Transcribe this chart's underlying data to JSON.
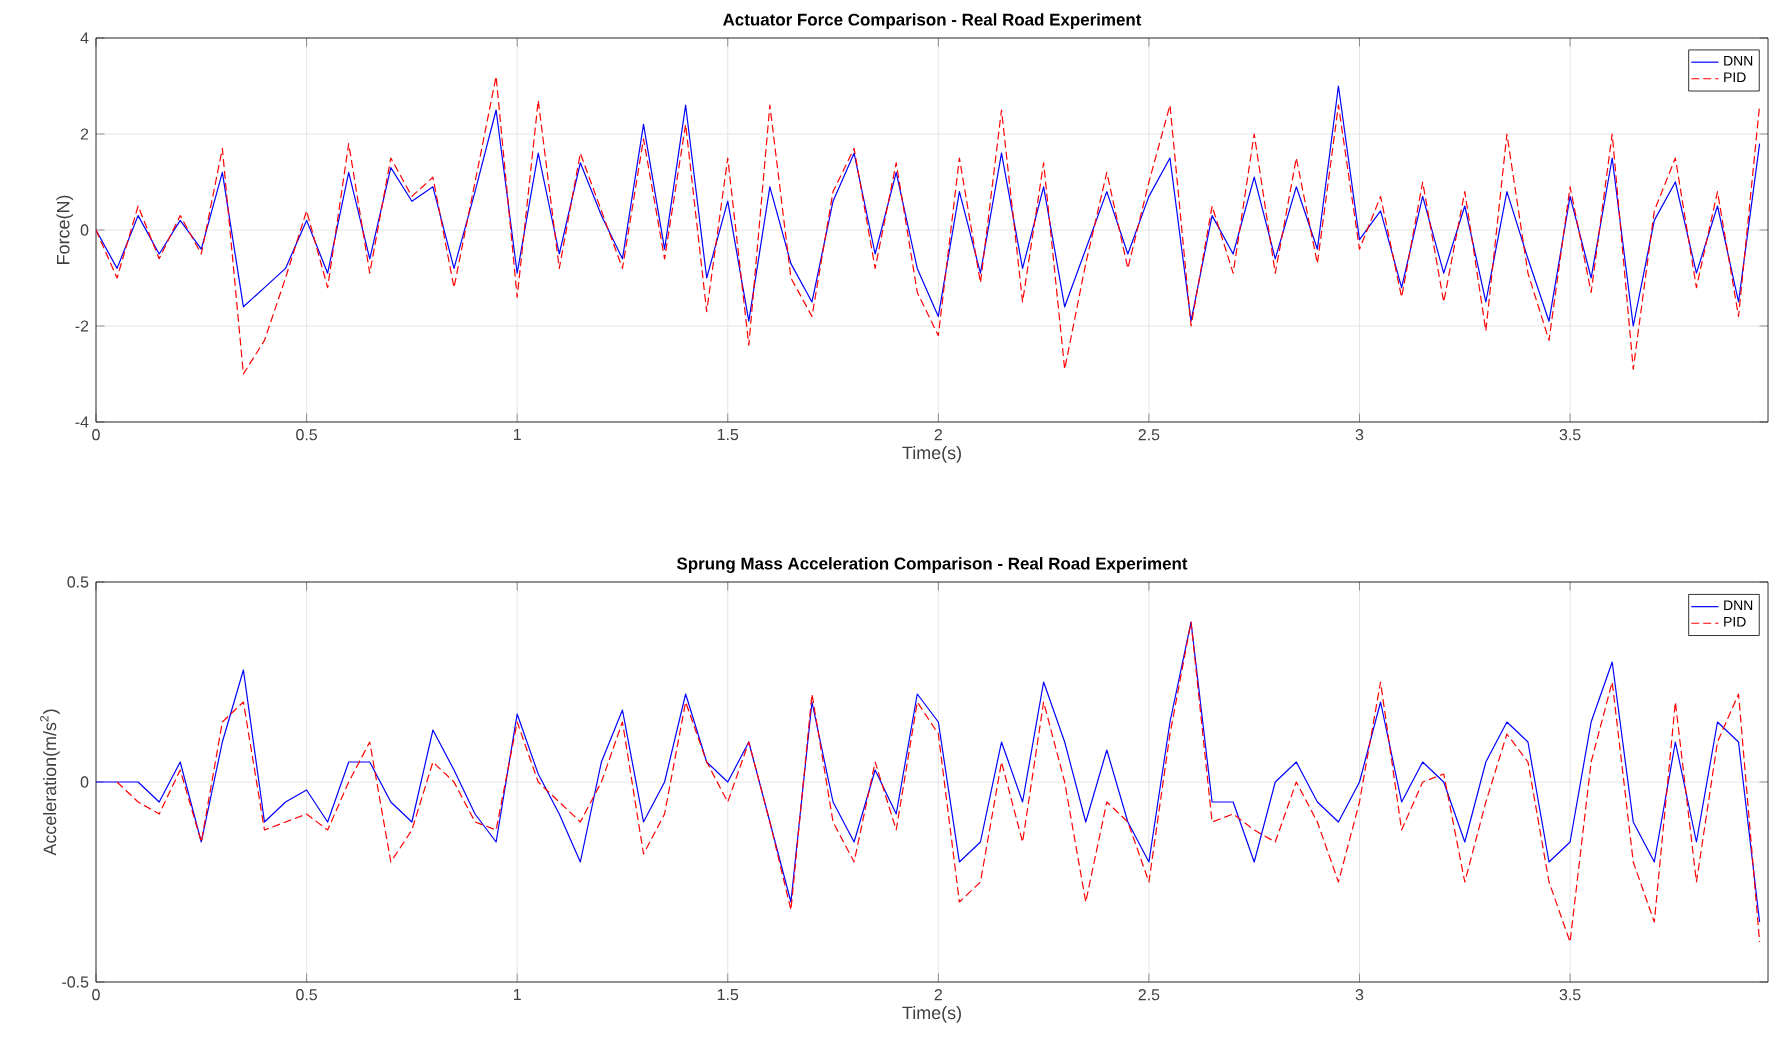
{
  "chart_data": [
    {
      "type": "line",
      "title": "Actuator Force Comparison - Real Road Experiment",
      "xlabel": "Time(s)",
      "ylabel": "Force(N)",
      "xlim": [
        0,
        3.97
      ],
      "ylim": [
        -4,
        4
      ],
      "xticks": [
        0,
        0.5,
        1,
        1.5,
        2,
        2.5,
        3,
        3.5
      ],
      "yticks": [
        -4,
        -2,
        0,
        2,
        4
      ],
      "grid": true,
      "legend": "top right",
      "x": [
        0,
        0.05,
        0.1,
        0.15,
        0.2,
        0.25,
        0.3,
        0.35,
        0.4,
        0.45,
        0.5,
        0.55,
        0.6,
        0.65,
        0.7,
        0.75,
        0.8,
        0.85,
        0.9,
        0.95,
        1.0,
        1.05,
        1.1,
        1.15,
        1.2,
        1.25,
        1.3,
        1.35,
        1.4,
        1.45,
        1.5,
        1.55,
        1.6,
        1.65,
        1.7,
        1.75,
        1.8,
        1.85,
        1.9,
        1.95,
        2.0,
        2.05,
        2.1,
        2.15,
        2.2,
        2.25,
        2.3,
        2.35,
        2.4,
        2.45,
        2.5,
        2.55,
        2.6,
        2.65,
        2.7,
        2.75,
        2.8,
        2.85,
        2.9,
        2.95,
        3.0,
        3.05,
        3.1,
        3.15,
        3.2,
        3.25,
        3.3,
        3.35,
        3.4,
        3.45,
        3.5,
        3.55,
        3.6,
        3.65,
        3.7,
        3.75,
        3.8,
        3.85,
        3.9,
        3.95
      ],
      "series": [
        {
          "name": "DNN",
          "color": "#0000ff",
          "line_style": "solid",
          "values": [
            0,
            -0.8,
            0.3,
            -0.5,
            0.2,
            -0.4,
            1.2,
            -1.6,
            -1.2,
            -0.8,
            0.2,
            -0.9,
            1.2,
            -0.6,
            1.3,
            0.6,
            0.9,
            -0.8,
            0.8,
            2.5,
            -0.9,
            1.6,
            -0.5,
            1.4,
            0.3,
            -0.6,
            2.2,
            -0.4,
            2.6,
            -1.0,
            0.6,
            -1.9,
            0.9,
            -0.7,
            -1.5,
            0.6,
            1.6,
            -0.5,
            1.2,
            -0.8,
            -1.8,
            0.8,
            -0.9,
            1.6,
            -0.8,
            0.9,
            -1.6,
            -0.4,
            0.8,
            -0.5,
            0.7,
            1.5,
            -1.9,
            0.3,
            -0.5,
            1.1,
            -0.6,
            0.9,
            -0.4,
            3.0,
            -0.2,
            0.4,
            -1.2,
            0.7,
            -0.9,
            0.5,
            -1.5,
            0.8,
            -0.6,
            -1.9,
            0.7,
            -1.0,
            1.5,
            -2.0,
            0.2,
            1.0,
            -0.9,
            0.5,
            -1.5,
            1.8
          ]
        },
        {
          "name": "PID",
          "color": "#ff0000",
          "line_style": "dashed",
          "values": [
            0,
            -1.0,
            0.5,
            -0.6,
            0.3,
            -0.5,
            1.7,
            -3.0,
            -2.3,
            -1.0,
            0.4,
            -1.2,
            1.8,
            -0.9,
            1.5,
            0.7,
            1.1,
            -1.2,
            1.0,
            3.2,
            -1.4,
            2.7,
            -0.8,
            1.6,
            0.4,
            -0.8,
            1.9,
            -0.6,
            2.2,
            -1.7,
            1.5,
            -2.4,
            2.6,
            -1.0,
            -1.8,
            0.8,
            1.7,
            -0.8,
            1.4,
            -1.3,
            -2.2,
            1.5,
            -1.1,
            2.5,
            -1.5,
            1.4,
            -2.9,
            -0.7,
            1.2,
            -0.8,
            1.0,
            2.6,
            -2.0,
            0.5,
            -0.9,
            2.0,
            -0.9,
            1.5,
            -0.7,
            2.6,
            -0.4,
            0.7,
            -1.4,
            1.0,
            -1.5,
            0.8,
            -2.1,
            2.0,
            -0.9,
            -2.3,
            0.9,
            -1.3,
            2.0,
            -2.9,
            0.4,
            1.5,
            -1.2,
            0.8,
            -1.8,
            2.6
          ]
        }
      ]
    },
    {
      "type": "line",
      "title": "Sprung Mass Acceleration Comparison - Real Road Experiment",
      "xlabel": "Time(s)",
      "ylabel": "Acceleration(m/s$^{2}$)",
      "xlim": [
        0,
        3.97
      ],
      "ylim": [
        -0.5,
        0.5
      ],
      "xticks": [
        0,
        0.5,
        1,
        1.5,
        2,
        2.5,
        3,
        3.5
      ],
      "yticks": [
        -0.5,
        0,
        0.5
      ],
      "grid": true,
      "legend": "top right",
      "x": [
        0,
        0.05,
        0.1,
        0.15,
        0.2,
        0.25,
        0.3,
        0.35,
        0.4,
        0.45,
        0.5,
        0.55,
        0.6,
        0.65,
        0.7,
        0.75,
        0.8,
        0.85,
        0.9,
        0.95,
        1.0,
        1.05,
        1.1,
        1.15,
        1.2,
        1.25,
        1.3,
        1.35,
        1.4,
        1.45,
        1.5,
        1.55,
        1.6,
        1.65,
        1.7,
        1.75,
        1.8,
        1.85,
        1.9,
        1.95,
        2.0,
        2.05,
        2.1,
        2.15,
        2.2,
        2.25,
        2.3,
        2.35,
        2.4,
        2.45,
        2.5,
        2.55,
        2.6,
        2.65,
        2.7,
        2.75,
        2.8,
        2.85,
        2.9,
        2.95,
        3.0,
        3.05,
        3.1,
        3.15,
        3.2,
        3.25,
        3.3,
        3.35,
        3.4,
        3.45,
        3.5,
        3.55,
        3.6,
        3.65,
        3.7,
        3.75,
        3.8,
        3.85,
        3.9,
        3.95
      ],
      "series": [
        {
          "name": "DNN",
          "color": "#0000ff",
          "line_style": "solid",
          "values": [
            0,
            0,
            0.0,
            -0.05,
            0.05,
            -0.15,
            0.1,
            0.28,
            -0.1,
            -0.05,
            -0.02,
            -0.1,
            0.05,
            0.05,
            -0.05,
            -0.1,
            0.13,
            0.03,
            -0.08,
            -0.15,
            0.17,
            0.02,
            -0.08,
            -0.2,
            0.05,
            0.18,
            -0.1,
            0.0,
            0.22,
            0.05,
            0.0,
            0.1,
            -0.1,
            -0.3,
            0.2,
            -0.05,
            -0.15,
            0.03,
            -0.08,
            0.22,
            0.15,
            -0.2,
            -0.15,
            0.1,
            -0.05,
            0.25,
            0.1,
            -0.1,
            0.08,
            -0.1,
            -0.2,
            0.15,
            0.4,
            -0.05,
            -0.05,
            -0.2,
            0.0,
            0.05,
            -0.05,
            -0.1,
            0.0,
            0.2,
            -0.05,
            0.05,
            0.0,
            -0.15,
            0.05,
            0.15,
            0.1,
            -0.2,
            -0.15,
            0.15,
            0.3,
            -0.1,
            -0.2,
            0.1,
            -0.15,
            0.15,
            0.1,
            -0.35
          ]
        },
        {
          "name": "PID",
          "color": "#ff0000",
          "line_style": "dashed",
          "values": [
            null,
            0,
            -0.05,
            -0.08,
            0.03,
            -0.15,
            0.15,
            0.2,
            -0.12,
            -0.1,
            -0.08,
            -0.12,
            0.0,
            0.1,
            -0.2,
            -0.12,
            0.05,
            0.0,
            -0.1,
            -0.12,
            0.15,
            0.0,
            -0.05,
            -0.1,
            0.0,
            0.15,
            -0.18,
            -0.08,
            0.2,
            0.05,
            -0.05,
            0.1,
            -0.1,
            -0.32,
            0.22,
            -0.1,
            -0.2,
            0.05,
            -0.12,
            0.2,
            0.12,
            -0.3,
            -0.25,
            0.05,
            -0.15,
            0.2,
            0.0,
            -0.3,
            -0.05,
            -0.1,
            -0.25,
            0.12,
            0.4,
            -0.1,
            -0.08,
            -0.12,
            -0.15,
            0.0,
            -0.1,
            -0.25,
            -0.05,
            0.25,
            -0.12,
            0.0,
            0.02,
            -0.25,
            -0.05,
            0.12,
            0.05,
            -0.25,
            -0.4,
            0.05,
            0.25,
            -0.2,
            -0.35,
            0.2,
            -0.25,
            0.1,
            0.22,
            -0.4
          ]
        }
      ]
    }
  ]
}
